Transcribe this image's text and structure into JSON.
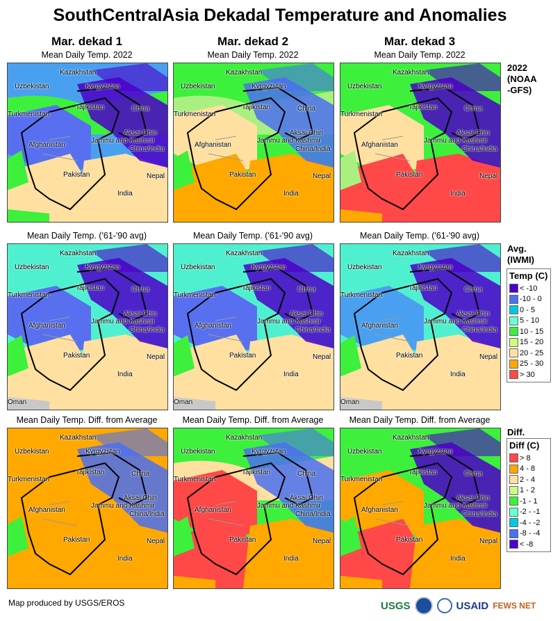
{
  "title": "SouthCentralAsia Dekadal Temperature and Anomalies",
  "columns": [
    "Mar. dekad 1",
    "Mar. dekad 2",
    "Mar. dekad 3"
  ],
  "rows": [
    {
      "subtitle": "Mean Daily Temp. 2022",
      "side_label": [
        "2022",
        "(NOAA",
        "-GFS)"
      ]
    },
    {
      "subtitle": "Mean Daily Temp. ('61-'90 avg)",
      "side_label": [
        "Avg.",
        "(IWMI)"
      ]
    },
    {
      "subtitle": "Mean Daily Temp. Diff. from Average",
      "side_label": [
        "Diff."
      ]
    }
  ],
  "place_labels": [
    "Kazakhstan",
    "Uzbekistan",
    "Kyrgyzstan",
    "Tajikistan",
    "China",
    "Turkmenistan",
    "Aksai Chin",
    "Jammu and Kashmir",
    "China/India",
    "Afghanistan",
    "Pakistan",
    "Nepal",
    "India",
    "Oman"
  ],
  "maps": [
    [
      "#4aa0f0",
      "#4b00c8",
      "#3cf03c",
      "#5870f0",
      "#ffe0a0",
      "#ffe0a0",
      "#3cf03c",
      "#3cf03c"
    ],
    [
      "#3cf03c",
      "#4b70f0",
      "#aaf080",
      "#ffe0a0",
      "#ffa800",
      "#ffa800",
      "#3cf03c",
      "#ffa800"
    ],
    [
      "#3cf03c",
      "#4b00c8",
      "#3cf03c",
      "#ffe0a0",
      "#ff4848",
      "#ff4848",
      "#aaf080",
      "#ffa800"
    ],
    [
      "#4ff0d0",
      "#4b00c8",
      "#4ff0d0",
      "#5870f0",
      "#ffe0a0",
      "#ffe0a0",
      "#3cf03c",
      "#c8c8c8"
    ],
    [
      "#4ff0d0",
      "#4b00c8",
      "#4ff0d0",
      "#5870f0",
      "#ffe0a0",
      "#ffe0a0",
      "#3cf03c",
      "#c8c8c8"
    ],
    [
      "#4ff0d0",
      "#4b00c8",
      "#4ff0d0",
      "#4aa0f0",
      "#ffe0a0",
      "#ffe0a0",
      "#3cf03c",
      "#c8c8c8"
    ],
    [
      "#ffa800",
      "#4b70f0",
      "#ffa800",
      "#ffa800",
      "#ffa800",
      "#ffa800",
      "#3cf03c",
      "#ffa800"
    ],
    [
      "#3cf03c",
      "#4b70f0",
      "#ffe0a0",
      "#ff4848",
      "#ff4848",
      "#ffa800",
      "#3cf03c",
      "#ffa800"
    ],
    [
      "#3cf03c",
      "#4b00c8",
      "#3cf03c",
      "#ffa800",
      "#ff4848",
      "#ffa800",
      "#3cf03c",
      "#ffa800"
    ]
  ],
  "legend_temp": {
    "title": "Temp (C)",
    "items": [
      {
        "label": "< -10",
        "color": "#4b00c8"
      },
      {
        "label": "-10 - 0",
        "color": "#4b70f0"
      },
      {
        "label": "0 - 5",
        "color": "#00c8e0"
      },
      {
        "label": "5 - 10",
        "color": "#6affd0"
      },
      {
        "label": "10 - 15",
        "color": "#3cf03c"
      },
      {
        "label": "15 - 20",
        "color": "#ccff80"
      },
      {
        "label": "20 - 25",
        "color": "#ffe0a0"
      },
      {
        "label": "25 - 30",
        "color": "#ffa800"
      },
      {
        "label": "> 30",
        "color": "#ff4848"
      }
    ]
  },
  "legend_diff": {
    "title": "Diff (C)",
    "items": [
      {
        "label": "> 8",
        "color": "#ff4848"
      },
      {
        "label": "4 - 8",
        "color": "#ffa800"
      },
      {
        "label": "2 - 4",
        "color": "#ffe0a0"
      },
      {
        "label": "1 - 2",
        "color": "#ccff80"
      },
      {
        "label": "-1 - 1",
        "color": "#3cf03c"
      },
      {
        "label": "-2 - -1",
        "color": "#6affd0"
      },
      {
        "label": "-4 - -2",
        "color": "#00c8e0"
      },
      {
        "label": "-8 - -4",
        "color": "#4b70f0"
      },
      {
        "label": "< -8",
        "color": "#4b00c8"
      }
    ]
  },
  "footer": "Map produced by USGS/EROS",
  "logos": [
    "USGS",
    "NOAA",
    "USAID",
    "FEWS NET"
  ]
}
